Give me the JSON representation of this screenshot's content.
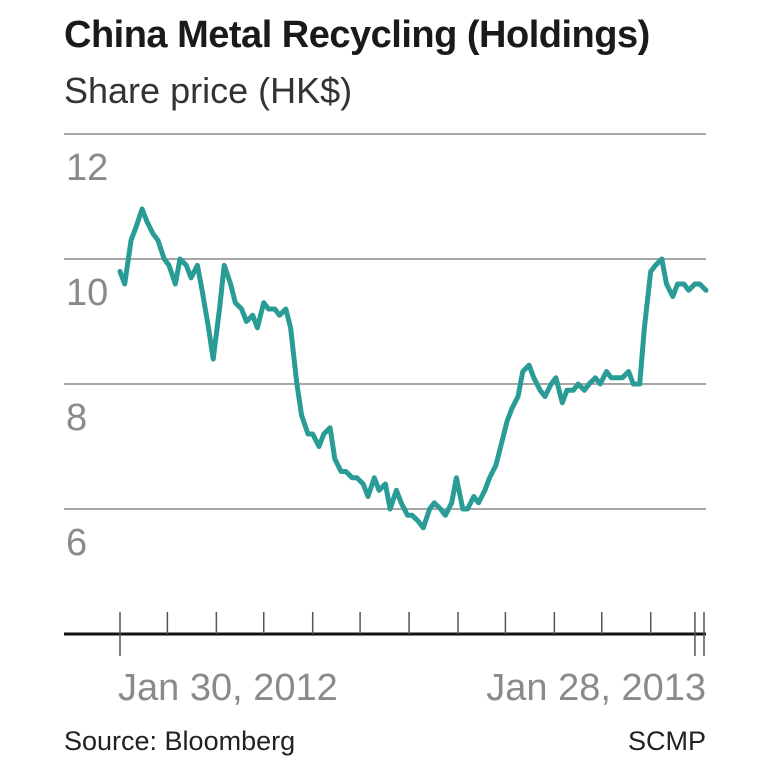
{
  "header": {
    "title": "China Metal Recycling (Holdings)",
    "subtitle": "Share price (HK$)"
  },
  "footer": {
    "source": "Source: Bloomberg",
    "credit": "SCMP"
  },
  "colors": {
    "line": "#2a9c96",
    "grid": "#888888",
    "axis": "#111111",
    "text": "#8a8a8a"
  },
  "chart_data": {
    "type": "line",
    "title": "China Metal Recycling (Holdings)",
    "subtitle": "Share price (HK$)",
    "xlabel": "",
    "ylabel": "",
    "ylim": [
      4.0,
      12.0
    ],
    "yticks": [
      12,
      10,
      8,
      6
    ],
    "ytick_labels": [
      "12",
      "10",
      "8",
      "6"
    ],
    "xlim": [
      "2012-01-30",
      "2013-02-04"
    ],
    "xtick_labels": [
      {
        "date": "2012-01-30",
        "label": "Jan 30, 2012"
      },
      {
        "date": "2013-01-28",
        "label": "Jan 28, 2013"
      }
    ],
    "minor_xticks": [
      "2012-02-29",
      "2012-03-31",
      "2012-04-30",
      "2012-05-31",
      "2012-06-30",
      "2012-07-31",
      "2012-08-31",
      "2012-09-30",
      "2012-10-31",
      "2012-11-30",
      "2012-12-31"
    ],
    "grid": true,
    "series": [
      {
        "name": "",
        "x": [
          "2012-01-30",
          "2012-02-02",
          "2012-02-06",
          "2012-02-09",
          "2012-02-13",
          "2012-02-16",
          "2012-02-20",
          "2012-02-23",
          "2012-02-27",
          "2012-03-01",
          "2012-03-05",
          "2012-03-08",
          "2012-03-12",
          "2012-03-15",
          "2012-03-19",
          "2012-03-22",
          "2012-03-26",
          "2012-03-29",
          "2012-04-02",
          "2012-04-05",
          "2012-04-09",
          "2012-04-12",
          "2012-04-16",
          "2012-04-19",
          "2012-04-23",
          "2012-04-26",
          "2012-04-30",
          "2012-05-03",
          "2012-05-07",
          "2012-05-10",
          "2012-05-14",
          "2012-05-17",
          "2012-05-21",
          "2012-05-24",
          "2012-05-28",
          "2012-05-31",
          "2012-06-04",
          "2012-06-07",
          "2012-06-11",
          "2012-06-14",
          "2012-06-18",
          "2012-06-21",
          "2012-06-25",
          "2012-06-28",
          "2012-07-02",
          "2012-07-05",
          "2012-07-09",
          "2012-07-12",
          "2012-07-16",
          "2012-07-19",
          "2012-07-23",
          "2012-07-26",
          "2012-07-30",
          "2012-08-02",
          "2012-08-06",
          "2012-08-09",
          "2012-08-13",
          "2012-08-16",
          "2012-08-20",
          "2012-08-23",
          "2012-08-27",
          "2012-08-30",
          "2012-09-03",
          "2012-09-06",
          "2012-09-10",
          "2012-09-13",
          "2012-09-17",
          "2012-09-20",
          "2012-09-24",
          "2012-09-27",
          "2012-10-01",
          "2012-10-04",
          "2012-10-08",
          "2012-10-11",
          "2012-10-15",
          "2012-10-18",
          "2012-10-22",
          "2012-10-25",
          "2012-10-29",
          "2012-11-01",
          "2012-11-05",
          "2012-11-08",
          "2012-11-12",
          "2012-11-15",
          "2012-11-19",
          "2012-11-22",
          "2012-11-26",
          "2012-11-29",
          "2012-12-03",
          "2012-12-06",
          "2012-12-10",
          "2012-12-13",
          "2012-12-17",
          "2012-12-20",
          "2012-12-24",
          "2012-12-27",
          "2012-12-31",
          "2013-01-03",
          "2013-01-07",
          "2013-01-10",
          "2013-01-14",
          "2013-01-17",
          "2013-01-21",
          "2013-01-24",
          "2013-01-28",
          "2013-01-31",
          "2013-02-04"
        ],
        "values": [
          9.8,
          9.6,
          10.3,
          10.5,
          10.8,
          10.6,
          10.4,
          10.3,
          10.0,
          9.9,
          9.6,
          10.0,
          9.9,
          9.7,
          9.9,
          9.5,
          8.9,
          8.4,
          9.2,
          9.9,
          9.6,
          9.3,
          9.2,
          9.0,
          9.1,
          8.9,
          9.3,
          9.2,
          9.2,
          9.1,
          9.2,
          8.9,
          8.0,
          7.5,
          7.2,
          7.2,
          7.0,
          7.2,
          7.3,
          6.8,
          6.6,
          6.6,
          6.5,
          6.5,
          6.4,
          6.2,
          6.5,
          6.3,
          6.4,
          6.0,
          6.3,
          6.1,
          5.9,
          5.9,
          5.8,
          5.7,
          6.0,
          6.1,
          6.0,
          5.9,
          6.1,
          6.5,
          6.0,
          6.0,
          6.2,
          6.1,
          6.3,
          6.5,
          6.7,
          7.0,
          7.4,
          7.6,
          7.8,
          8.2,
          8.3,
          8.1,
          7.9,
          7.8,
          8.0,
          8.1,
          7.7,
          7.9,
          7.9,
          8.0,
          7.9,
          8.0,
          8.1,
          8.0,
          8.2,
          8.1,
          8.1,
          8.1,
          8.2,
          8.0,
          8.0,
          8.9,
          9.8,
          9.9,
          10.0,
          9.6,
          9.4,
          9.6,
          9.6,
          9.5,
          9.6,
          9.6,
          9.5
        ]
      }
    ]
  }
}
